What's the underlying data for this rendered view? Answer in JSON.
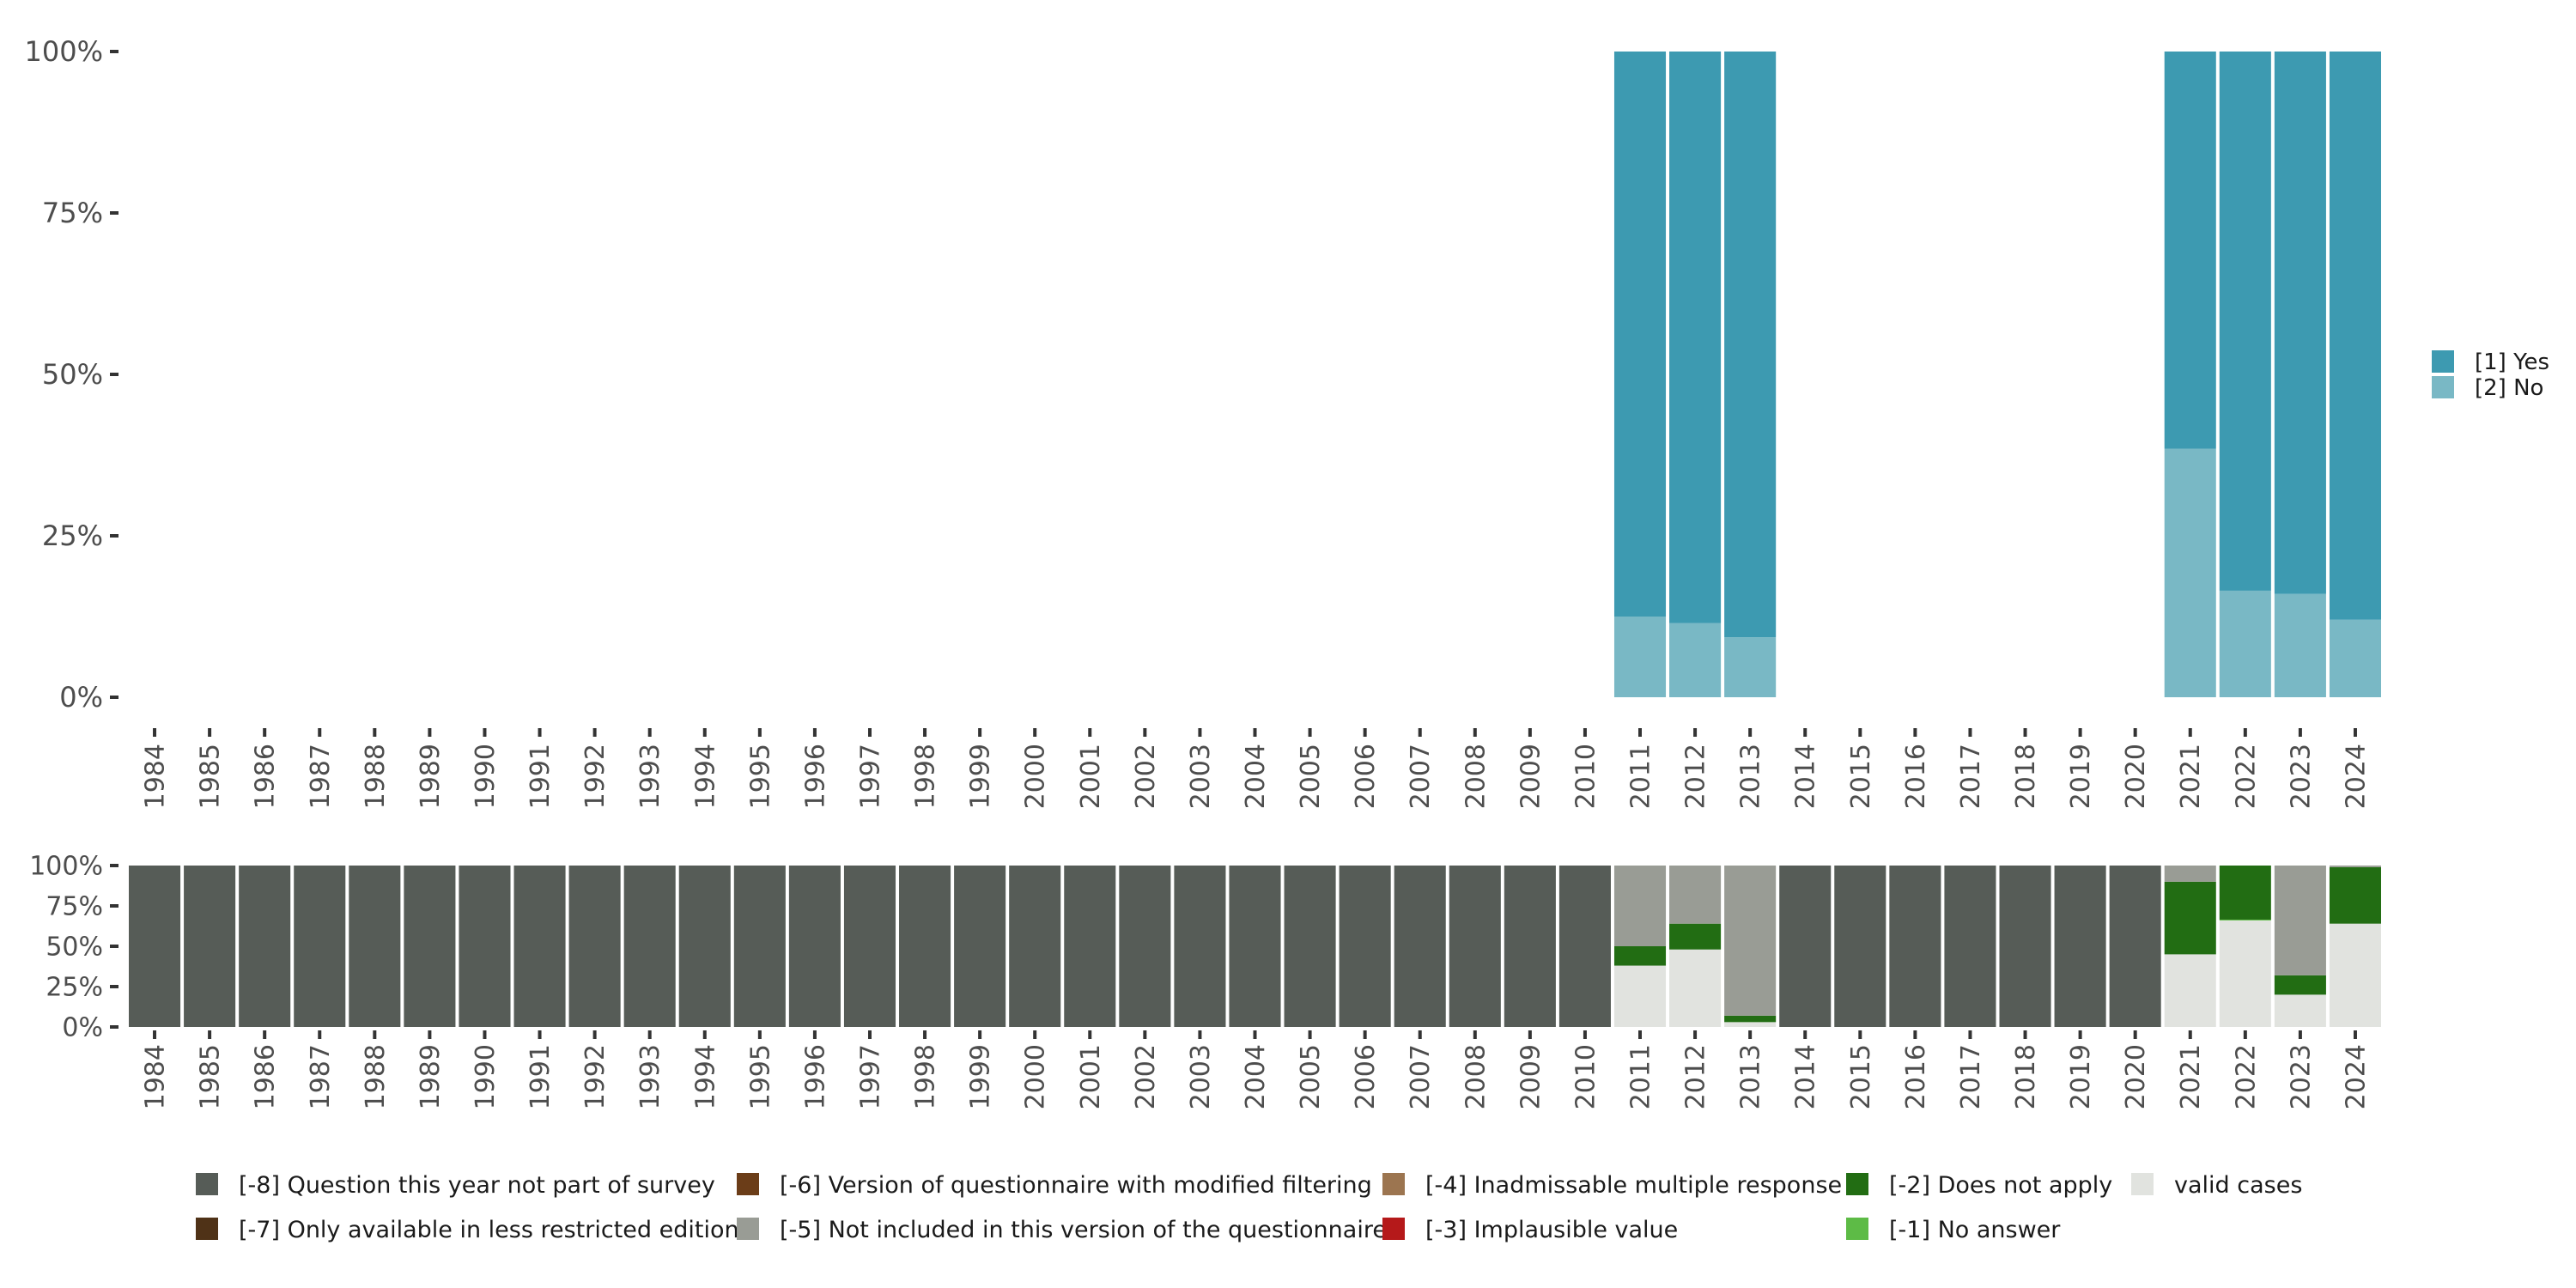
{
  "chart_data": [
    {
      "type": "bar",
      "stacked": true,
      "title": "",
      "xlabel": "",
      "ylabel": "",
      "ylim": [
        0,
        100
      ],
      "y_ticks": [
        "0%",
        "25%",
        "50%",
        "75%",
        "100%"
      ],
      "categories": [
        "1984",
        "1985",
        "1986",
        "1987",
        "1988",
        "1989",
        "1990",
        "1991",
        "1992",
        "1993",
        "1994",
        "1995",
        "1996",
        "1997",
        "1998",
        "1999",
        "2000",
        "2001",
        "2002",
        "2003",
        "2004",
        "2005",
        "2006",
        "2007",
        "2008",
        "2009",
        "2010",
        "2011",
        "2012",
        "2013",
        "2014",
        "2015",
        "2016",
        "2017",
        "2018",
        "2019",
        "2020",
        "2021",
        "2022",
        "2023",
        "2024"
      ],
      "series": [
        {
          "name": "[2] No",
          "color": "#79b8c5",
          "values": [
            null,
            null,
            null,
            null,
            null,
            null,
            null,
            null,
            null,
            null,
            null,
            null,
            null,
            null,
            null,
            null,
            null,
            null,
            null,
            null,
            null,
            null,
            null,
            null,
            null,
            null,
            null,
            12.5,
            11.5,
            9.3,
            null,
            null,
            null,
            null,
            null,
            null,
            null,
            38.5,
            16.5,
            16,
            12
          ]
        },
        {
          "name": "[1] Yes",
          "color": "#3d9ab1",
          "values": [
            null,
            null,
            null,
            null,
            null,
            null,
            null,
            null,
            null,
            null,
            null,
            null,
            null,
            null,
            null,
            null,
            null,
            null,
            null,
            null,
            null,
            null,
            null,
            null,
            null,
            null,
            null,
            87.5,
            88.5,
            90.7,
            null,
            null,
            null,
            null,
            null,
            null,
            null,
            61.5,
            83.5,
            84,
            88
          ]
        }
      ],
      "legend_position": "right"
    },
    {
      "type": "bar",
      "stacked": true,
      "title": "",
      "xlabel": "",
      "ylabel": "",
      "ylim": [
        0,
        100
      ],
      "y_ticks": [
        "0%",
        "25%",
        "50%",
        "75%",
        "100%"
      ],
      "categories": [
        "1984",
        "1985",
        "1986",
        "1987",
        "1988",
        "1989",
        "1990",
        "1991",
        "1992",
        "1993",
        "1994",
        "1995",
        "1996",
        "1997",
        "1998",
        "1999",
        "2000",
        "2001",
        "2002",
        "2003",
        "2004",
        "2005",
        "2006",
        "2007",
        "2008",
        "2009",
        "2010",
        "2011",
        "2012",
        "2013",
        "2014",
        "2015",
        "2016",
        "2017",
        "2018",
        "2019",
        "2020",
        "2021",
        "2022",
        "2023",
        "2024"
      ],
      "series": [
        {
          "name": "valid cases",
          "color": "#e1e3df",
          "values": [
            0,
            0,
            0,
            0,
            0,
            0,
            0,
            0,
            0,
            0,
            0,
            0,
            0,
            0,
            0,
            0,
            0,
            0,
            0,
            0,
            0,
            0,
            0,
            0,
            0,
            0,
            0,
            38,
            48,
            3,
            0,
            0,
            0,
            0,
            0,
            0,
            0,
            45,
            66,
            20,
            64
          ]
        },
        {
          "name": "[-1] No answer",
          "color": "#5dbb46",
          "values": [
            0,
            0,
            0,
            0,
            0,
            0,
            0,
            0,
            0,
            0,
            0,
            0,
            0,
            0,
            0,
            0,
            0,
            0,
            0,
            0,
            0,
            0,
            0,
            0,
            0,
            0,
            0,
            0,
            0,
            0,
            0,
            0,
            0,
            0,
            0,
            0,
            0,
            0,
            0.5,
            0,
            0
          ]
        },
        {
          "name": "[-2] Does not apply",
          "color": "#226d13",
          "values": [
            0,
            0,
            0,
            0,
            0,
            0,
            0,
            0,
            0,
            0,
            0,
            0,
            0,
            0,
            0,
            0,
            0,
            0,
            0,
            0,
            0,
            0,
            0,
            0,
            0,
            0,
            0,
            12,
            16,
            4,
            0,
            0,
            0,
            0,
            0,
            0,
            0,
            45,
            33.5,
            12,
            35
          ]
        },
        {
          "name": "[-5] Not included in this version of the questionnaire",
          "color": "#999c95",
          "values": [
            0,
            0,
            0,
            0,
            0,
            0,
            0,
            0,
            0,
            0,
            0,
            0,
            0,
            0,
            0,
            0,
            0,
            0,
            0,
            0,
            0,
            0,
            0,
            0,
            0,
            0,
            0,
            50,
            36,
            93,
            0,
            0,
            0,
            0,
            0,
            0,
            0,
            10,
            0,
            68,
            1
          ]
        },
        {
          "name": "[-8] Question this year not part of survey",
          "color": "#565c57",
          "values": [
            100,
            100,
            100,
            100,
            100,
            100,
            100,
            100,
            100,
            100,
            100,
            100,
            100,
            100,
            100,
            100,
            100,
            100,
            100,
            100,
            100,
            100,
            100,
            100,
            100,
            100,
            100,
            0,
            0,
            0,
            100,
            100,
            100,
            100,
            100,
            100,
            100,
            0,
            0,
            0,
            0
          ]
        }
      ],
      "legend": [
        {
          "label": "[-8] Question this year not part of survey",
          "color": "#565c57"
        },
        {
          "label": "[-7] Only available in less restricted edition",
          "color": "#4f3217"
        },
        {
          "label": "[-6] Version of questionnaire with modified filtering",
          "color": "#6b3d18"
        },
        {
          "label": "[-5] Not included in this version of the questionnaire",
          "color": "#999c95"
        },
        {
          "label": "[-4] Inadmissable multiple response",
          "color": "#9c7550"
        },
        {
          "label": "[-3] Implausible value",
          "color": "#b5191a"
        },
        {
          "label": "[-2] Does not apply",
          "color": "#226d13"
        },
        {
          "label": "[-1] No answer",
          "color": "#5dbb46"
        },
        {
          "label": "valid cases",
          "color": "#e1e3df"
        }
      ],
      "legend_position": "bottom"
    }
  ]
}
